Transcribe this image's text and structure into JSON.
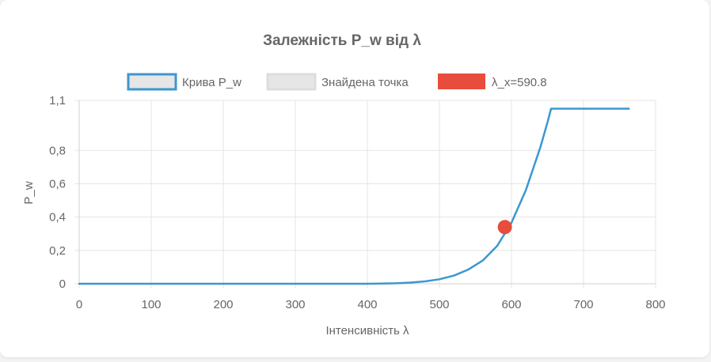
{
  "chart_data": {
    "type": "line",
    "title": "Залежність P_w від λ",
    "xlabel": "Інтенсивність λ",
    "ylabel": "P_w",
    "xlim": [
      0,
      800
    ],
    "ylim": [
      0,
      1.1
    ],
    "x_ticks": [
      "0",
      "100",
      "200",
      "300",
      "400",
      "500",
      "600",
      "700",
      "800"
    ],
    "y_ticks": [
      "0",
      "0,2",
      "0,4",
      "0,6",
      "0,8",
      "1,1"
    ],
    "grid": true,
    "legend_position": "top",
    "legend": [
      {
        "label": "Крива P_w",
        "color": "#3c97d0",
        "fill": "#e6e6e6"
      },
      {
        "label": "Знайдена точка",
        "color": "#dddddd",
        "fill": "#e6e6e6"
      },
      {
        "label": "λ_x=590.8",
        "color": "#e74c3c",
        "fill": "#e74c3c"
      }
    ],
    "series": [
      {
        "name": "Крива P_w",
        "color": "#3c97d0",
        "x": [
          0,
          100,
          200,
          300,
          400,
          420,
          440,
          460,
          480,
          500,
          520,
          540,
          560,
          580,
          600,
          620,
          640,
          650,
          655,
          700,
          763
        ],
        "y": [
          0,
          0,
          0,
          0,
          0,
          0.001,
          0.003,
          0.007,
          0.014,
          0.027,
          0.049,
          0.085,
          0.139,
          0.226,
          0.366,
          0.562,
          0.818,
          0.968,
          1.05,
          1.05,
          1.05
        ]
      },
      {
        "name": "λ_x=590.8",
        "color": "#e74c3c",
        "x": [
          590.8
        ],
        "y": [
          0.34
        ]
      }
    ]
  }
}
